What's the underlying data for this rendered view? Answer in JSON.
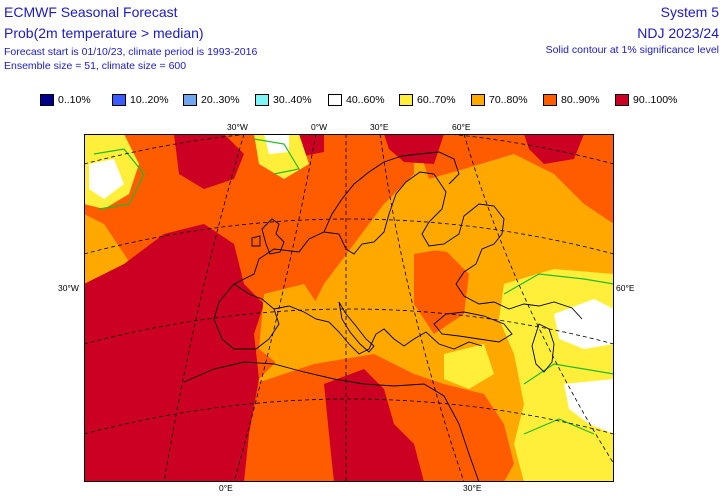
{
  "header": {
    "title": "ECMWF Seasonal Forecast",
    "subtitle": "Prob(2m temperature > median)",
    "line3": "Forecast start is 01/10/23, climate period is 1993-2016",
    "line4": "Ensemble size = 51, climate size = 600",
    "system": "System 5",
    "season": "NDJ 2023/24",
    "note": "Solid contour at 1% significance level"
  },
  "legend": [
    {
      "label": "0..10%",
      "color": "#00008c"
    },
    {
      "label": "10..20%",
      "color": "#3a5bff"
    },
    {
      "label": "20..30%",
      "color": "#6fa6ee"
    },
    {
      "label": "30..40%",
      "color": "#7ff5f5"
    },
    {
      "label": "40..60%",
      "color": "#ffffff"
    },
    {
      "label": "60..70%",
      "color": "#ffef3a"
    },
    {
      "label": "70..80%",
      "color": "#ffa800"
    },
    {
      "label": "80..90%",
      "color": "#ff5c00"
    },
    {
      "label": "90..100%",
      "color": "#cc0022"
    }
  ],
  "map": {
    "lon_labels_top": [
      "30°W",
      "0°W",
      "30°E",
      "60°E"
    ],
    "lon_labels_bottom": [
      "0°E",
      "30°E"
    ],
    "lat_labels_left": [
      "30°W"
    ],
    "lat_labels_right": [
      "60°E"
    ],
    "significance_contour_color": "#22bb22",
    "coastline_color": "#000000"
  }
}
